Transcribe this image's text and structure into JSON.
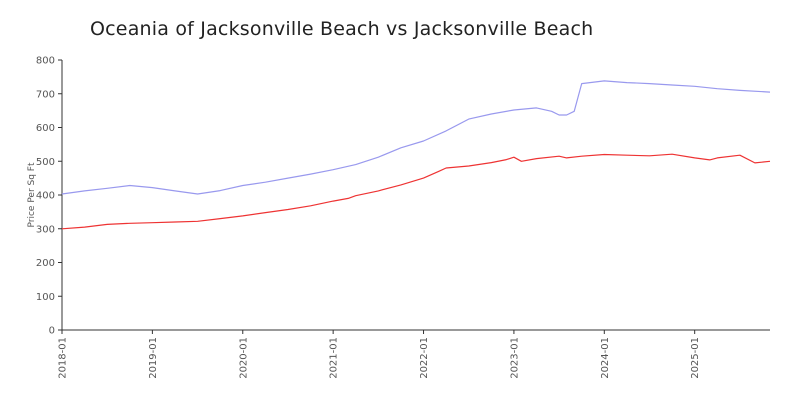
{
  "chart_data": {
    "type": "line",
    "title": "Oceania of Jacksonville Beach vs Jacksonville Beach",
    "xlabel": "",
    "ylabel": "Price Per Sq Ft",
    "ylim": [
      0,
      800
    ],
    "yticks": [
      0,
      100,
      200,
      300,
      400,
      500,
      600,
      700,
      800
    ],
    "xticks": [
      "2018-01",
      "2019-01",
      "2020-01",
      "2021-01",
      "2022-01",
      "2023-01",
      "2024-01",
      "2025-01"
    ],
    "x_start": "2018-01",
    "x_end": "2025-11",
    "grid": false,
    "legend": "none",
    "series": [
      {
        "color": "#9999ee",
        "x": [
          "2018-01",
          "2018-04",
          "2018-07",
          "2018-10",
          "2019-01",
          "2019-04",
          "2019-07",
          "2019-10",
          "2020-01",
          "2020-04",
          "2020-07",
          "2020-10",
          "2021-01",
          "2021-04",
          "2021-07",
          "2021-10",
          "2022-01",
          "2022-04",
          "2022-07",
          "2022-10",
          "2023-01",
          "2023-04",
          "2023-06",
          "2023-07",
          "2023-08",
          "2023-09",
          "2023-10",
          "2024-01",
          "2024-04",
          "2024-07",
          "2024-10",
          "2025-01",
          "2025-04",
          "2025-07",
          "2025-11"
        ],
        "values": [
          403,
          412,
          420,
          428,
          422,
          412,
          403,
          413,
          428,
          438,
          450,
          462,
          475,
          490,
          512,
          540,
          560,
          590,
          625,
          640,
          652,
          658,
          648,
          637,
          637,
          648,
          730,
          738,
          733,
          730,
          726,
          722,
          715,
          710,
          705
        ]
      },
      {
        "color": "#ee3333",
        "x": [
          "2018-01",
          "2018-04",
          "2018-07",
          "2018-10",
          "2019-01",
          "2019-04",
          "2019-07",
          "2019-10",
          "2020-01",
          "2020-04",
          "2020-07",
          "2020-10",
          "2021-01",
          "2021-03",
          "2021-04",
          "2021-07",
          "2021-10",
          "2022-01",
          "2022-03",
          "2022-04",
          "2022-07",
          "2022-10",
          "2022-12",
          "2023-01",
          "2023-02",
          "2023-04",
          "2023-07",
          "2023-08",
          "2023-10",
          "2024-01",
          "2024-04",
          "2024-07",
          "2024-10",
          "2025-01",
          "2025-03",
          "2025-04",
          "2025-07",
          "2025-09",
          "2025-11"
        ],
        "values": [
          300,
          305,
          313,
          316,
          318,
          320,
          322,
          330,
          338,
          348,
          357,
          368,
          382,
          390,
          398,
          412,
          430,
          450,
          470,
          480,
          486,
          496,
          505,
          512,
          500,
          508,
          515,
          510,
          515,
          520,
          518,
          516,
          521,
          510,
          504,
          510,
          518,
          495,
          500
        ]
      }
    ]
  }
}
